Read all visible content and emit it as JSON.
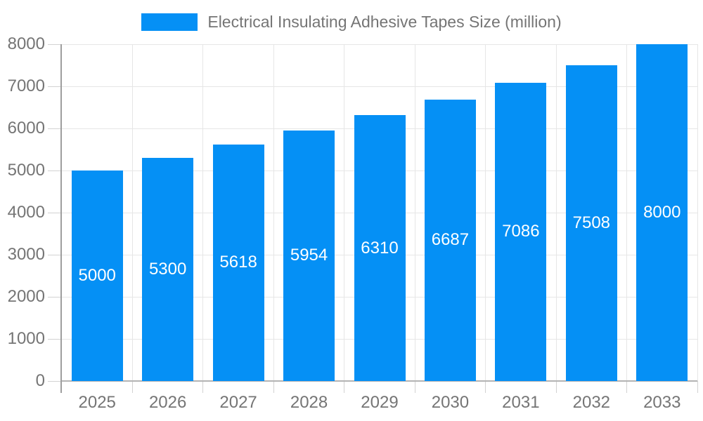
{
  "chart_data": {
    "type": "bar",
    "title": "Electrical Insulating Adhesive Tapes Size (million)",
    "legend_position": "top",
    "categories": [
      "2025",
      "2026",
      "2027",
      "2028",
      "2029",
      "2030",
      "2031",
      "2032",
      "2033"
    ],
    "series": [
      {
        "name": "Electrical Insulating Adhesive Tapes Size (million)",
        "values": [
          5000,
          5300,
          5618,
          5954,
          6310,
          6687,
          7086,
          7508,
          8000
        ]
      }
    ],
    "data_labels": [
      "5000",
      "5300",
      "5618",
      "5954",
      "6310",
      "6687",
      "7086",
      "7508",
      "8000"
    ],
    "xlabel": "",
    "ylabel": "",
    "ylim": [
      0,
      8000
    ],
    "ytick_step": 1000,
    "yticks": [
      "0",
      "1000",
      "2000",
      "3000",
      "4000",
      "5000",
      "6000",
      "7000",
      "8000"
    ],
    "grid": true,
    "colors": {
      "bar": "#0590F5",
      "bar_label_text": "#ffffff",
      "axis_text": "#757575",
      "legend_text": "#757575",
      "gridline": "#e6e6e6",
      "tick": "#d2d2d2",
      "y_axis_line": "#9e9e9e",
      "x_axis_line": "#b3b3b3",
      "background": "#ffffff"
    }
  }
}
